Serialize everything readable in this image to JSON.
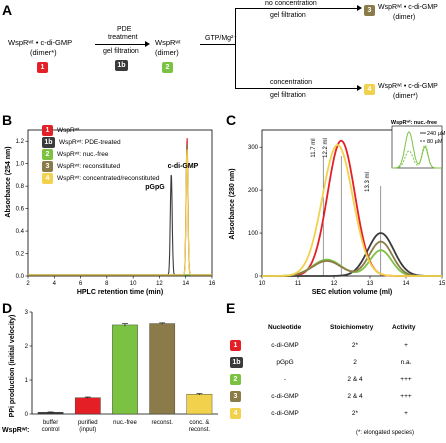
{
  "panels": {
    "A": "A",
    "B": "B",
    "C": "C",
    "D": "D",
    "E": "E"
  },
  "colors": {
    "red": "#e41f26",
    "dark": "#3a3a3a",
    "green": "#7cc242",
    "olive": "#8b7b48",
    "yellow": "#f2d24c"
  },
  "panelA": {
    "s1": "WspRʷᵗ • c-di-GMP",
    "s1b": "(dimer*)",
    "b1": "1",
    "pde1": "PDE",
    "pde2": "treatment",
    "gel": "gel filtration",
    "b1b": "1b",
    "s2": "WspRʷᵗ",
    "s2b": "(dimer)",
    "b2": "2",
    "gtp": "GTP/Mg²⁺",
    "noconc": "no concentration",
    "gel2": "gel filtration",
    "b3": "3",
    "s3": "WspRʷᵗ • c-di-GMP",
    "s3b": "(dimer)",
    "conc": "concentration",
    "gel3": "gel filtration",
    "b4": "4",
    "s4": "WspRʷᵗ • c-di-GMP",
    "s4b": "(dimer*)"
  },
  "panelB": {
    "legend": [
      {
        "badge": "1",
        "label": "WspRʷᵗ",
        "color": "#e41f26"
      },
      {
        "badge": "1b",
        "label": "WspRʷᵗ: PDE-treated",
        "color": "#3a3a3a"
      },
      {
        "badge": "2",
        "label": "WspRʷᵗ: nuc.-free",
        "color": "#7cc242"
      },
      {
        "badge": "3",
        "label": "WspRʷᵗ: reconstituted",
        "color": "#8b7b48"
      },
      {
        "badge": "4",
        "label": "WspRʷᵗ: concentrated/reconstituted",
        "color": "#f2d24c"
      }
    ],
    "peak1": "c-di-GMP",
    "peak2": "pGpG"
  },
  "panelC": {
    "p1": "11.7 ml",
    "p2": "12.2 ml",
    "p3": "13.3 ml",
    "inset_title": "WspRʷᵗ: nuc.-free",
    "inset_l1": "240 µM",
    "inset_l2": "80 µM"
  },
  "panelD": {
    "rowlabel": "WspRʷᵗ:"
  },
  "panelE": {
    "h1": "Nucleotide",
    "h2": "Stoichiometry",
    "h3": "Activity",
    "rows": [
      {
        "badge": "1",
        "color": "#e41f26",
        "nuc": "c-di-GMP",
        "st": "2*",
        "act": "+"
      },
      {
        "badge": "1b",
        "color": "#3a3a3a",
        "nuc": "pGpG",
        "st": "2",
        "act": "n.a."
      },
      {
        "badge": "2",
        "color": "#7cc242",
        "nuc": "-",
        "st": "2 & 4",
        "act": "+++"
      },
      {
        "badge": "3",
        "color": "#8b7b48",
        "nuc": "c-di-GMP",
        "st": "2 & 4",
        "act": "+++"
      },
      {
        "badge": "4",
        "color": "#f2d24c",
        "nuc": "c-di-GMP",
        "st": "2*",
        "act": "+"
      }
    ],
    "footnote": "(*: elongated species)"
  },
  "chart_data": [
    {
      "type": "line",
      "title": "",
      "xlabel": "HPLC retention time (min)",
      "ylabel": "Absorbance (254 nm)",
      "xlim": [
        2,
        16
      ],
      "ylim": [
        0,
        1.3
      ],
      "xticks": [
        "2",
        "4",
        "6",
        "8",
        "10",
        "12",
        "14",
        "16"
      ],
      "yticks": [
        "0.0",
        "0.2",
        "0.4",
        "0.6",
        "0.8",
        "1.0",
        "1.2"
      ],
      "series": [
        {
          "name": "1",
          "color": "#e41f26",
          "peaks": [
            {
              "x": 14.1,
              "y": 1.23
            }
          ]
        },
        {
          "name": "1b",
          "color": "#3a3a3a",
          "peaks": [
            {
              "x": 12.9,
              "y": 0.91
            }
          ]
        },
        {
          "name": "2",
          "color": "#7cc242",
          "peaks": []
        },
        {
          "name": "3",
          "color": "#8b7b48",
          "peaks": [
            {
              "x": 14.1,
              "y": 1.18
            }
          ]
        },
        {
          "name": "4",
          "color": "#f2d24c",
          "peaks": [
            {
              "x": 14.1,
              "y": 1.13
            }
          ]
        }
      ]
    },
    {
      "type": "line",
      "title": "",
      "xlabel": "SEC elution volume (ml)",
      "ylabel": "Absorbance (280 nm)",
      "xlim": [
        10,
        15
      ],
      "ylim": [
        0,
        340
      ],
      "xticks": [
        "10",
        "11",
        "12",
        "13",
        "14",
        "15"
      ],
      "yticks": [
        "0",
        "100",
        "200",
        "300"
      ],
      "series": [
        {
          "name": "1",
          "color": "#e41f26",
          "peaks": [
            {
              "x": 12.2,
              "y": 315,
              "w": 0.38
            }
          ]
        },
        {
          "name": "1b",
          "color": "#3a3a3a",
          "peaks": [
            {
              "x": 13.3,
              "y": 100,
              "w": 0.36
            }
          ]
        },
        {
          "name": "2",
          "color": "#7cc242",
          "peaks": [
            {
              "x": 11.8,
              "y": 38,
              "w": 0.4
            },
            {
              "x": 13.3,
              "y": 60,
              "w": 0.3
            }
          ]
        },
        {
          "name": "3",
          "color": "#8b7b48",
          "peaks": [
            {
              "x": 11.8,
              "y": 35,
              "w": 0.4
            },
            {
              "x": 13.3,
              "y": 80,
              "w": 0.32
            }
          ]
        },
        {
          "name": "4",
          "color": "#f2d24c",
          "peaks": [
            {
              "x": 12.1,
              "y": 305,
              "w": 0.42
            }
          ]
        }
      ]
    },
    {
      "type": "bar",
      "title": "",
      "ylabel": "PPi production (initial velocity)",
      "ylim": [
        0,
        3.0
      ],
      "yticks": [
        "0",
        "1",
        "2",
        "3"
      ],
      "categories": [
        "buffer control",
        "purified (input)",
        "nuc.-free",
        "reconst.",
        "conc. & reconst."
      ],
      "values": [
        0.05,
        0.48,
        2.62,
        2.66,
        0.58
      ],
      "errors": [
        0.01,
        0.02,
        0.04,
        0.02,
        0.02
      ],
      "colors": [
        "#3a3a3a",
        "#e41f26",
        "#7cc242",
        "#8b7b48",
        "#f2d24c"
      ]
    }
  ]
}
